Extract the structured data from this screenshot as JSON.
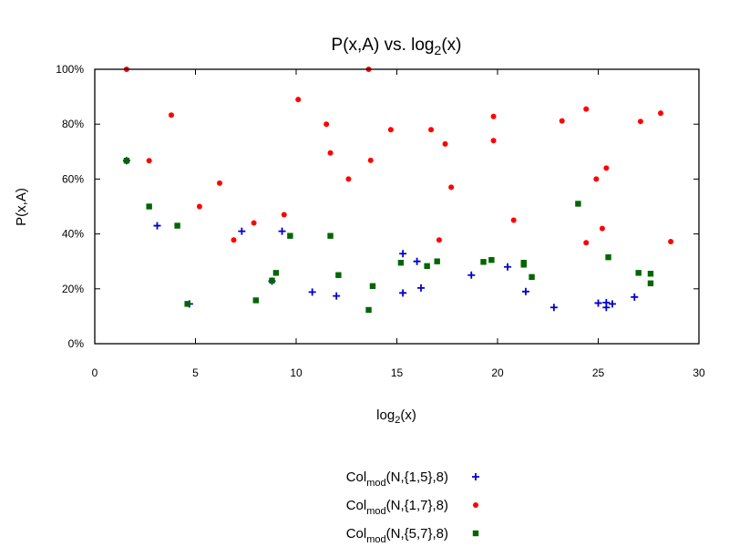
{
  "chart_data": {
    "type": "scatter",
    "title": {
      "main": "P(x,A) vs. log",
      "sub": "2",
      "tail": "(x)"
    },
    "xlabel": {
      "main": "log",
      "sub": "2",
      "tail": "(x)"
    },
    "ylabel": "P(x,A)",
    "xlim": [
      0,
      30
    ],
    "ylim": [
      0,
      100
    ],
    "x_ticks": [
      {
        "value": 0,
        "label": "0"
      },
      {
        "value": 5,
        "label": "5"
      },
      {
        "value": 10,
        "label": "10"
      },
      {
        "value": 15,
        "label": "15"
      },
      {
        "value": 20,
        "label": "20"
      },
      {
        "value": 25,
        "label": "25"
      },
      {
        "value": 30,
        "label": "30"
      }
    ],
    "y_ticks": [
      {
        "value": 0,
        "label": "0%"
      },
      {
        "value": 20,
        "label": "20%"
      },
      {
        "value": 40,
        "label": "40%"
      },
      {
        "value": 60,
        "label": "60%"
      },
      {
        "value": 80,
        "label": "80%"
      },
      {
        "value": 100,
        "label": "100%"
      }
    ],
    "grid": false,
    "legend_position": "bottom-center",
    "series": [
      {
        "name": {
          "main": "Col",
          "sub": "mod",
          "tail": "(N,{1,5},8)"
        },
        "marker": "plus",
        "color": "#0000cc",
        "points": [
          [
            1.58,
            66.7
          ],
          [
            3.1,
            43.0
          ],
          [
            4.7,
            14.5
          ],
          [
            7.3,
            41.0
          ],
          [
            8.8,
            22.8
          ],
          [
            9.3,
            41.0
          ],
          [
            10.8,
            18.8
          ],
          [
            12.0,
            17.4
          ],
          [
            15.3,
            18.5
          ],
          [
            15.3,
            32.8
          ],
          [
            16.0,
            30.0
          ],
          [
            16.2,
            20.3
          ],
          [
            18.7,
            25.0
          ],
          [
            20.5,
            28.0
          ],
          [
            21.4,
            19.0
          ],
          [
            22.8,
            13.2
          ],
          [
            25.0,
            14.8
          ],
          [
            25.4,
            15.0
          ],
          [
            25.4,
            13.2
          ],
          [
            25.7,
            14.5
          ],
          [
            26.8,
            17.0
          ]
        ]
      },
      {
        "name": {
          "main": "Col",
          "sub": "mod",
          "tail": "(N,{1,7},8)"
        },
        "marker": "circle",
        "color": "#ff0000",
        "points": [
          [
            1.58,
            100.0
          ],
          [
            2.7,
            66.7
          ],
          [
            3.8,
            83.3
          ],
          [
            5.2,
            50.0
          ],
          [
            6.2,
            58.5
          ],
          [
            6.9,
            37.8
          ],
          [
            7.9,
            44.0
          ],
          [
            9.4,
            47.0
          ],
          [
            10.1,
            89.0
          ],
          [
            11.5,
            80.0
          ],
          [
            11.7,
            69.5
          ],
          [
            12.6,
            60.0
          ],
          [
            13.6,
            100.0
          ],
          [
            13.7,
            66.8
          ],
          [
            14.7,
            78.0
          ],
          [
            16.7,
            78.0
          ],
          [
            17.1,
            37.8
          ],
          [
            17.4,
            72.8
          ],
          [
            17.7,
            57.0
          ],
          [
            19.8,
            82.8
          ],
          [
            19.8,
            74.0
          ],
          [
            20.8,
            45.0
          ],
          [
            23.2,
            81.2
          ],
          [
            24.4,
            85.5
          ],
          [
            24.4,
            36.8
          ],
          [
            24.9,
            60.0
          ],
          [
            25.2,
            42.0
          ],
          [
            25.4,
            64.0
          ],
          [
            27.1,
            81.0
          ],
          [
            28.1,
            84.0
          ],
          [
            28.6,
            37.2
          ]
        ]
      },
      {
        "name": {
          "main": "Col",
          "sub": "mod",
          "tail": "(N,{5,7},8)"
        },
        "marker": "square",
        "color": "#006600",
        "points": [
          [
            1.58,
            66.7
          ],
          [
            2.7,
            50.0
          ],
          [
            4.1,
            43.0
          ],
          [
            4.6,
            14.5
          ],
          [
            8.0,
            15.8
          ],
          [
            8.8,
            23.0
          ],
          [
            9.0,
            25.8
          ],
          [
            9.7,
            39.3
          ],
          [
            11.7,
            39.3
          ],
          [
            12.1,
            25.0
          ],
          [
            13.6,
            12.3
          ],
          [
            13.8,
            21.0
          ],
          [
            15.2,
            29.5
          ],
          [
            16.5,
            28.3
          ],
          [
            17.0,
            30.0
          ],
          [
            19.3,
            29.8
          ],
          [
            19.7,
            30.5
          ],
          [
            21.3,
            29.5
          ],
          [
            21.3,
            28.8
          ],
          [
            21.7,
            24.3
          ],
          [
            24.0,
            51.0
          ],
          [
            25.5,
            31.5
          ],
          [
            27.0,
            25.8
          ],
          [
            27.6,
            25.5
          ],
          [
            27.6,
            22.0
          ]
        ]
      }
    ]
  }
}
